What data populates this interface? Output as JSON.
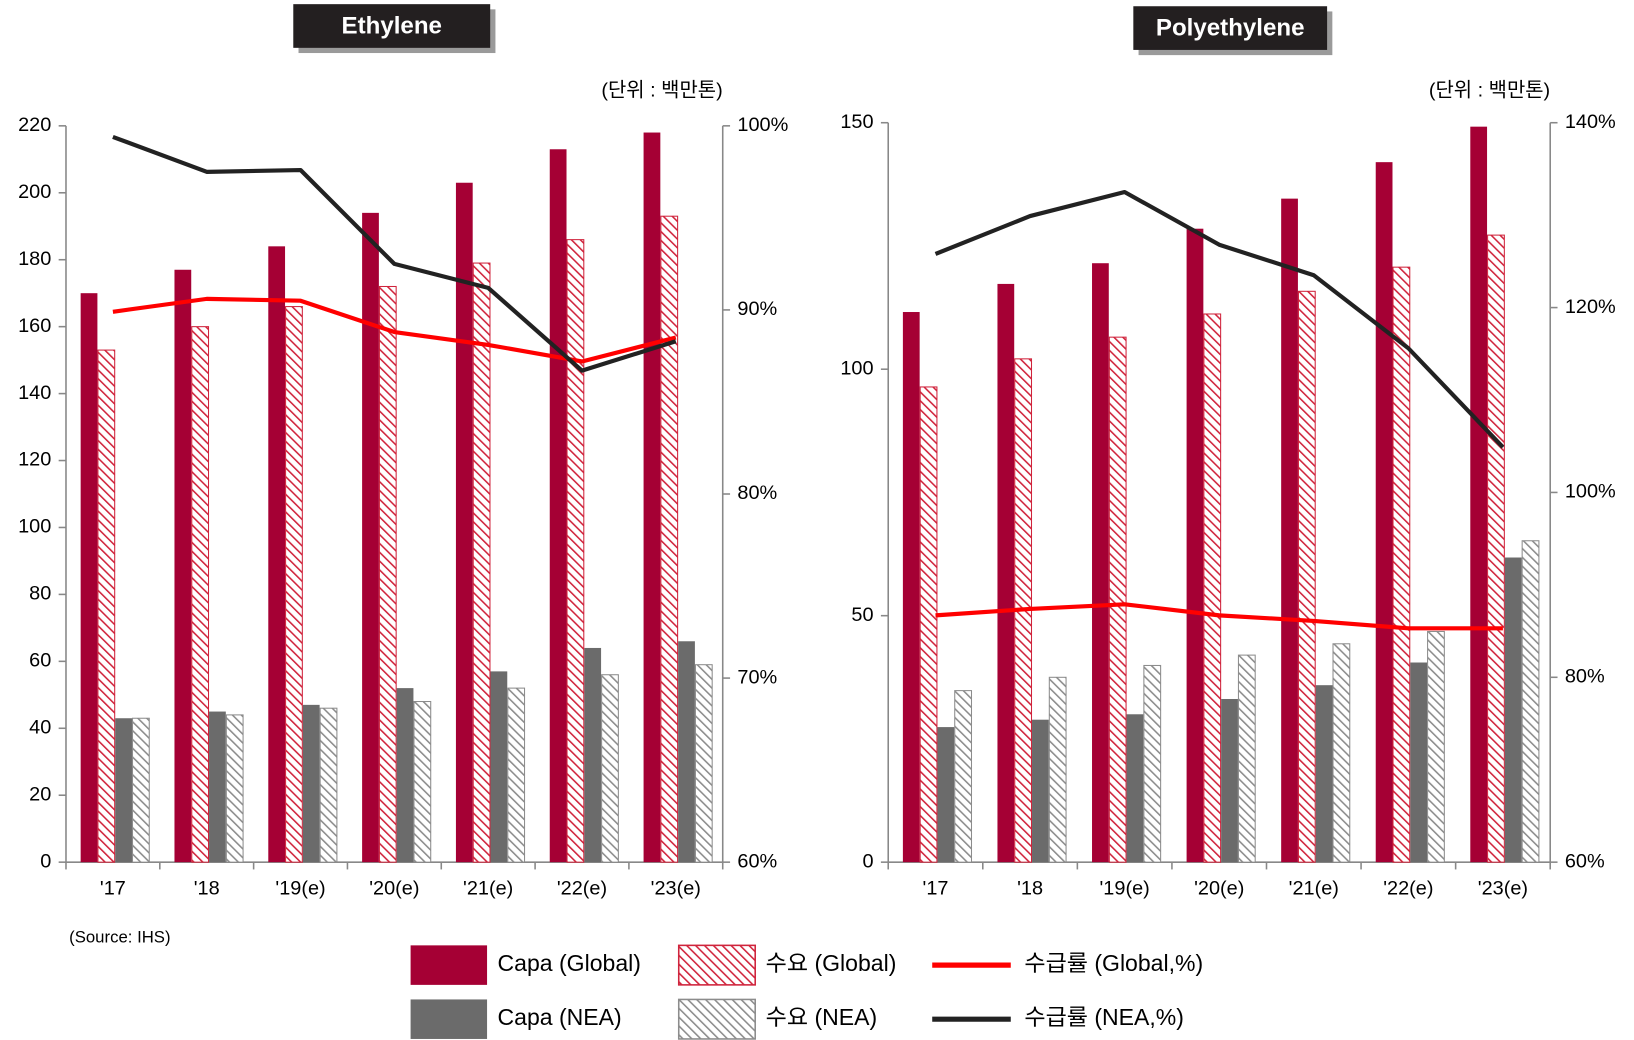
{
  "chart_data": [
    {
      "type": "bar",
      "title": "Ethylene",
      "unit": "(단위 : 백만톤)",
      "source": "(Source: IHS)",
      "categories": [
        "'17",
        "'18",
        "'19(e)",
        "'20(e)",
        "'21(e)",
        "'22(e)",
        "'23(e)"
      ],
      "ylim": [
        0,
        220
      ],
      "yticks": [
        0,
        20,
        40,
        60,
        80,
        100,
        120,
        140,
        160,
        180,
        200,
        220
      ],
      "y2lim": [
        60,
        100
      ],
      "y2ticks": [
        {
          "value": 60,
          "label": "60%"
        },
        {
          "value": 70,
          "label": "70%"
        },
        {
          "value": 80,
          "label": "80%"
        },
        {
          "value": 90,
          "label": "90%"
        },
        {
          "value": 100,
          "label": "100%"
        }
      ],
      "series": [
        {
          "name": "Capa (Global)",
          "type": "bar",
          "color": "#a50034",
          "hatch": false,
          "values": [
            170,
            177,
            184,
            194,
            203,
            213,
            218
          ]
        },
        {
          "name": "수요 (Global)",
          "type": "bar",
          "color": "#d0243c",
          "hatch": true,
          "values": [
            153,
            160,
            166,
            172,
            179,
            186,
            193
          ]
        },
        {
          "name": "Capa (NEA)",
          "type": "bar",
          "color": "#6b6b6b",
          "hatch": false,
          "values": [
            43,
            45,
            47,
            52,
            57,
            64,
            66
          ]
        },
        {
          "name": "수요 (NEA)",
          "type": "bar",
          "color": "#8c8c8c",
          "hatch": true,
          "values": [
            43,
            44,
            46,
            48,
            52,
            56,
            59
          ]
        },
        {
          "name": "수급률 (Global,%)",
          "type": "line",
          "axis": "y2",
          "color": "#ff0000",
          "values": [
            89.9,
            90.6,
            90.5,
            88.8,
            88.1,
            87.2,
            88.5
          ]
        },
        {
          "name": "수급률 (NEA,%)",
          "type": "line",
          "axis": "y2",
          "color": "#222222",
          "values": [
            99.4,
            97.5,
            97.6,
            92.5,
            91.2,
            86.7,
            88.3
          ]
        }
      ]
    },
    {
      "type": "bar",
      "title": "Polyethylene",
      "unit": "(단위 : 백만톤)",
      "categories": [
        "'17",
        "'18",
        "'19(e)",
        "'20(e)",
        "'21(e)",
        "'22(e)",
        "'23(e)"
      ],
      "ylim": [
        0,
        150
      ],
      "yticks": [
        0,
        50,
        100,
        150
      ],
      "y2lim": [
        60,
        140
      ],
      "y2ticks": [
        {
          "value": 60,
          "label": "60%"
        },
        {
          "value": 80,
          "label": "80%"
        },
        {
          "value": 100,
          "label": "100%"
        },
        {
          "value": 120,
          "label": "120%"
        },
        {
          "value": 140,
          "label": "140%"
        }
      ],
      "series": [
        {
          "type": "bar",
          "color": "#a50034",
          "hatch": false,
          "values": [
            111.6,
            117.3,
            121.5,
            128.5,
            134.6,
            142,
            149.2
          ]
        },
        {
          "type": "bar",
          "color": "#d0243c",
          "hatch": true,
          "values": [
            96.4,
            102.1,
            106.5,
            111.2,
            115.8,
            120.7,
            127.2
          ]
        },
        {
          "type": "bar",
          "color": "#6b6b6b",
          "hatch": false,
          "values": [
            27.4,
            28.9,
            30,
            33.1,
            35.9,
            40.5,
            61.8
          ]
        },
        {
          "type": "bar",
          "color": "#8c8c8c",
          "hatch": true,
          "values": [
            34.8,
            37.5,
            39.9,
            42,
            44.3,
            46.8,
            65.2
          ]
        },
        {
          "type": "line",
          "axis": "y2",
          "color": "#ff0000",
          "values": [
            86.7,
            87.4,
            87.9,
            86.7,
            86.1,
            85.3,
            85.3
          ]
        },
        {
          "type": "line",
          "axis": "y2",
          "color": "#222222",
          "values": [
            125.8,
            129.9,
            132.5,
            126.8,
            123.5,
            115.6,
            104.9
          ]
        }
      ]
    }
  ]
}
